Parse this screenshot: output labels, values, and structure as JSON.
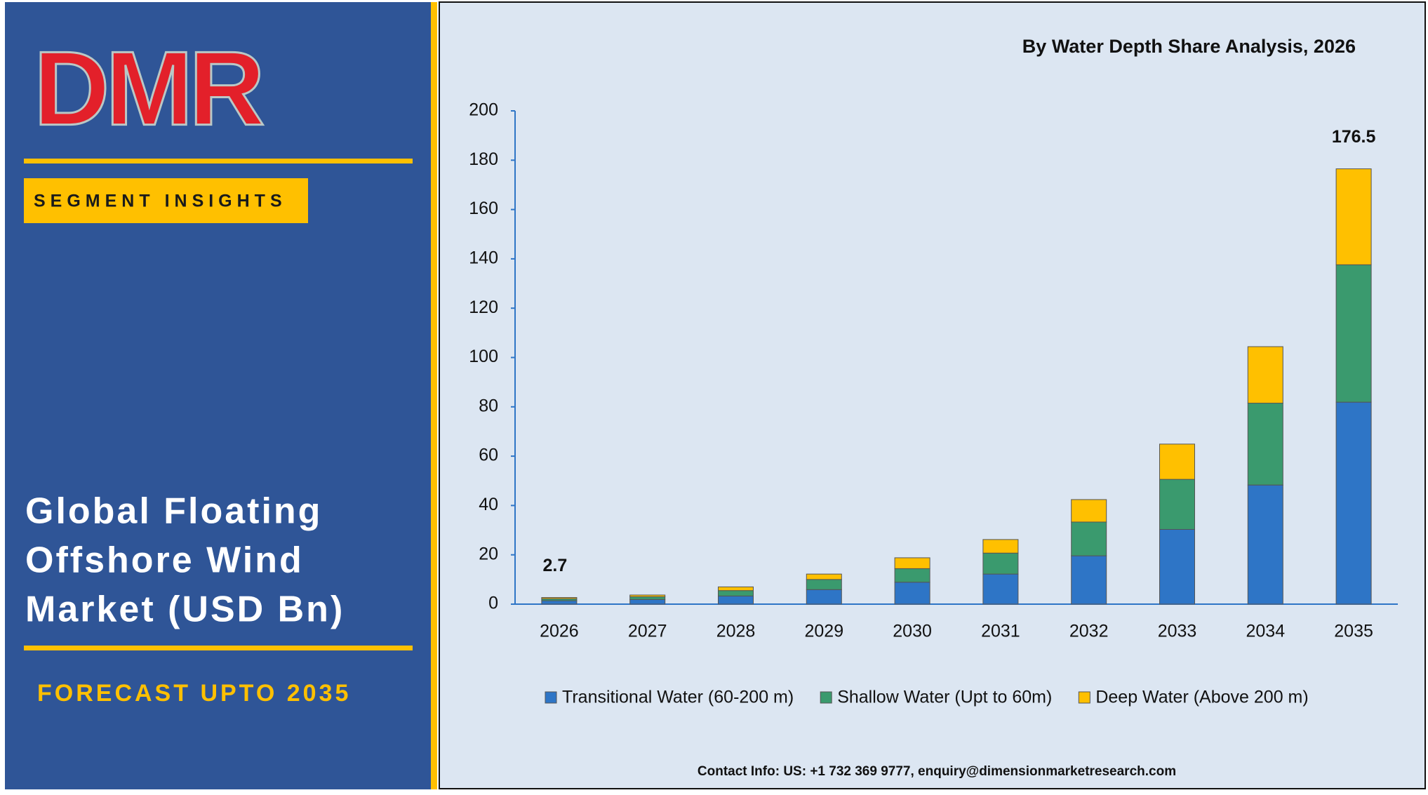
{
  "brand": {
    "logo": "DMR",
    "tag": "SEGMENT INSIGHTS",
    "heading": [
      "Global Floating",
      "Offshore Wind",
      "Market (USD Bn)"
    ],
    "forecast": "FORECAST UPTO 2035"
  },
  "chart_data": {
    "type": "stacked_bar",
    "title": "By Water Depth Share Analysis, 2026",
    "categories": [
      "2026",
      "2027",
      "2028",
      "2029",
      "2030",
      "2031",
      "2032",
      "2033",
      "2034",
      "2035"
    ],
    "series": [
      {
        "name": "Transitional Water (60-200 m)",
        "color": "#2e75c6",
        "values": [
          1.4,
          1.9,
          3.3,
          5.9,
          8.9,
          12.2,
          19.6,
          30.3,
          48.3,
          81.9
        ]
      },
      {
        "name": "Shallow Water (Upt to 60m)",
        "color": "#3a9a6e",
        "values": [
          0.8,
          1.1,
          2.2,
          4.1,
          5.5,
          8.5,
          13.7,
          20.3,
          33.2,
          55.7
        ]
      },
      {
        "name": "Deep Water (Above 200 m)",
        "color": "#ffc000",
        "values": [
          0.5,
          0.7,
          1.5,
          2.2,
          4.4,
          5.5,
          9.1,
          14.3,
          22.9,
          38.9
        ]
      }
    ],
    "totals": [
      2.7,
      null,
      null,
      null,
      null,
      null,
      null,
      null,
      null,
      176.5
    ],
    "ylim": [
      0,
      200
    ],
    "yticks": [
      0,
      20,
      40,
      60,
      80,
      100,
      120,
      140,
      160,
      180,
      200
    ]
  },
  "footer": {
    "contact": "Contact Info: US: +1 732 369 9777, enquiry@dimensionmarketresearch.com"
  }
}
